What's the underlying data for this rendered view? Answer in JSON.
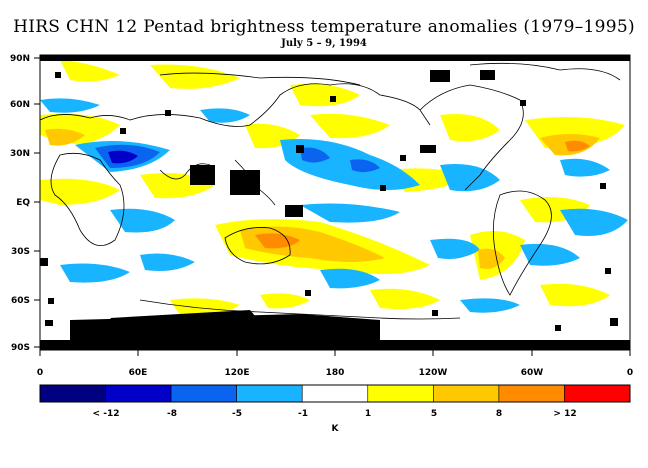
{
  "title": "HIRS CHN 12 Pentad brightness temperature anomalies (1979–1995)",
  "subtitle": "July 5 – 9, 1994",
  "map": {
    "y_ticks": [
      "90N",
      "60N",
      "30N",
      "EQ",
      "30S",
      "60S",
      "90S"
    ],
    "x_ticks": [
      "0",
      "60E",
      "120E",
      "180",
      "120W",
      "60W",
      "0"
    ]
  },
  "legend": {
    "colors": [
      "#000080",
      "#0000c8",
      "#0a64f0",
      "#19b4ff",
      "#ffffff",
      "#ffff00",
      "#ffc800",
      "#ff8c00",
      "#ff0000"
    ],
    "tick_labels": [
      "< -12",
      "-8",
      "-5",
      "-1",
      "1",
      "5",
      "8",
      "> 12"
    ],
    "unit": "K"
  }
}
